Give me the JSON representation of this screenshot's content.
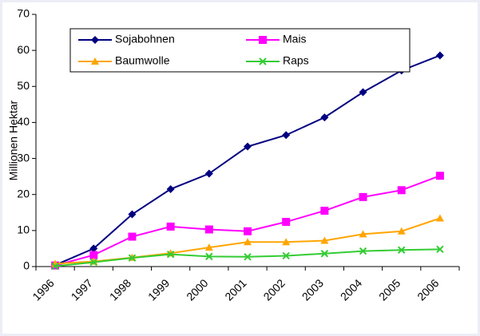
{
  "chart_data": {
    "type": "line",
    "y_label": "Millionen Hektar",
    "categories": [
      "1996",
      "1997",
      "1998",
      "1999",
      "2000",
      "2001",
      "2002",
      "2003",
      "2004",
      "2005",
      "2006"
    ],
    "series": [
      {
        "name": "Sojabohnen",
        "color": "#000080",
        "marker": "diamond",
        "values": [
          0.4,
          5.0,
          14.5,
          21.5,
          25.8,
          33.3,
          36.5,
          41.4,
          48.4,
          54.4,
          58.6
        ]
      },
      {
        "name": "Mais",
        "color": "#ff00ff",
        "marker": "square",
        "values": [
          0.3,
          3.2,
          8.3,
          11.1,
          10.3,
          9.8,
          12.4,
          15.5,
          19.3,
          21.2,
          25.2
        ]
      },
      {
        "name": "Baumwolle",
        "color": "#ffa500",
        "marker": "triangle",
        "values": [
          0.8,
          1.4,
          2.5,
          3.7,
          5.3,
          6.8,
          6.8,
          7.2,
          9.0,
          9.8,
          13.4
        ]
      },
      {
        "name": "Raps",
        "color": "#33cc33",
        "marker": "x",
        "values": [
          0.1,
          1.2,
          2.4,
          3.4,
          2.8,
          2.7,
          3.0,
          3.6,
          4.3,
          4.6,
          4.8
        ]
      }
    ],
    "ylim": [
      0,
      70
    ],
    "yticks": [
      0,
      10,
      20,
      30,
      40,
      50,
      60,
      70
    ],
    "grid": false
  }
}
